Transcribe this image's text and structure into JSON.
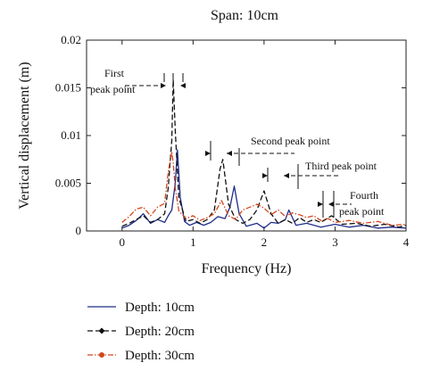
{
  "chart_data": {
    "type": "line",
    "title": "Span: 10cm",
    "xlabel": "Frequency (Hz)",
    "ylabel": "Vertical displacement (m)",
    "xlim": [
      -0.5,
      4
    ],
    "ylim": [
      0,
      0.02
    ],
    "xticks": [
      0,
      1,
      2,
      3,
      4
    ],
    "yticks": [
      0,
      0.005,
      0.01,
      0.015,
      0.02
    ],
    "xtick_labels": [
      "0",
      "1",
      "2",
      "3",
      "4"
    ],
    "ytick_labels": [
      "0",
      "0.005",
      "0.01",
      "0.015",
      "0.02"
    ],
    "grid": false,
    "legend_position": "bottom-left, below plot",
    "series": [
      {
        "name": "Depth: 10cm",
        "color": "#1f2d8a",
        "dash": "solid",
        "marker": "none",
        "x": [
          0,
          0.1,
          0.2,
          0.3,
          0.4,
          0.5,
          0.6,
          0.65,
          0.7,
          0.75,
          0.78,
          0.82,
          0.88,
          0.95,
          1.05,
          1.15,
          1.25,
          1.35,
          1.45,
          1.52,
          1.58,
          1.65,
          1.75,
          1.9,
          2.0,
          2.1,
          2.2,
          2.3,
          2.35,
          2.45,
          2.6,
          2.8,
          3.0,
          3.2,
          3.4,
          3.6,
          3.8,
          4.0
        ],
        "y": [
          0.0003,
          0.0006,
          0.0011,
          0.0018,
          0.0008,
          0.0012,
          0.0009,
          0.0016,
          0.0022,
          0.005,
          0.0085,
          0.0035,
          0.001,
          0.0006,
          0.0009,
          0.0006,
          0.0009,
          0.0015,
          0.0013,
          0.0025,
          0.0047,
          0.0018,
          0.0005,
          0.0008,
          0.0003,
          0.0009,
          0.0008,
          0.0012,
          0.0022,
          0.0006,
          0.0008,
          0.0004,
          0.0007,
          0.0004,
          0.0006,
          0.0003,
          0.0004,
          0.0003
        ]
      },
      {
        "name": "Depth: 20cm",
        "color": "#111111",
        "dash": "dashed",
        "marker": "diamond",
        "x": [
          0,
          0.1,
          0.2,
          0.3,
          0.4,
          0.5,
          0.6,
          0.65,
          0.7,
          0.72,
          0.75,
          0.8,
          0.9,
          1.0,
          1.1,
          1.2,
          1.3,
          1.38,
          1.42,
          1.5,
          1.6,
          1.7,
          1.8,
          1.9,
          2.0,
          2.1,
          2.2,
          2.3,
          2.4,
          2.5,
          2.6,
          2.7,
          2.8,
          2.95,
          3.1,
          3.3,
          3.5,
          3.7,
          3.9,
          4.0
        ],
        "y": [
          0.0005,
          0.0008,
          0.0012,
          0.0016,
          0.0009,
          0.0012,
          0.0018,
          0.0045,
          0.0095,
          0.0158,
          0.0105,
          0.0035,
          0.001,
          0.0012,
          0.0008,
          0.0012,
          0.0022,
          0.0065,
          0.0075,
          0.0028,
          0.0012,
          0.0008,
          0.0012,
          0.0022,
          0.0042,
          0.0018,
          0.0008,
          0.0012,
          0.0008,
          0.0014,
          0.0009,
          0.0012,
          0.0009,
          0.0016,
          0.0007,
          0.0008,
          0.0005,
          0.0007,
          0.0004,
          0.0006
        ]
      },
      {
        "name": "Depth: 30cm",
        "color": "#d2461b",
        "dash": "dashdot",
        "marker": "dot",
        "x": [
          0,
          0.1,
          0.2,
          0.3,
          0.4,
          0.5,
          0.6,
          0.65,
          0.7,
          0.72,
          0.75,
          0.8,
          0.9,
          1.0,
          1.1,
          1.2,
          1.3,
          1.4,
          1.5,
          1.6,
          1.7,
          1.8,
          1.9,
          2.0,
          2.1,
          2.2,
          2.3,
          2.4,
          2.5,
          2.6,
          2.7,
          2.8,
          2.9,
          3.0,
          3.2,
          3.4,
          3.6,
          3.8,
          4.0
        ],
        "y": [
          0.0009,
          0.0015,
          0.0023,
          0.0025,
          0.0016,
          0.0025,
          0.0029,
          0.0062,
          0.0083,
          0.0071,
          0.0045,
          0.0021,
          0.0013,
          0.0016,
          0.0011,
          0.0014,
          0.0018,
          0.0032,
          0.0016,
          0.0012,
          0.0022,
          0.0025,
          0.0028,
          0.0024,
          0.0017,
          0.0022,
          0.0015,
          0.0019,
          0.0017,
          0.0014,
          0.0016,
          0.0011,
          0.0013,
          0.0009,
          0.0011,
          0.0008,
          0.001,
          0.0006,
          0.0007
        ]
      }
    ],
    "annotations": {
      "first_top": "First",
      "first_bottom": "peak point",
      "second": "Second peak point",
      "third": "Third peak point",
      "fourth_top": "Fourth",
      "fourth_bottom": "peak point"
    }
  }
}
